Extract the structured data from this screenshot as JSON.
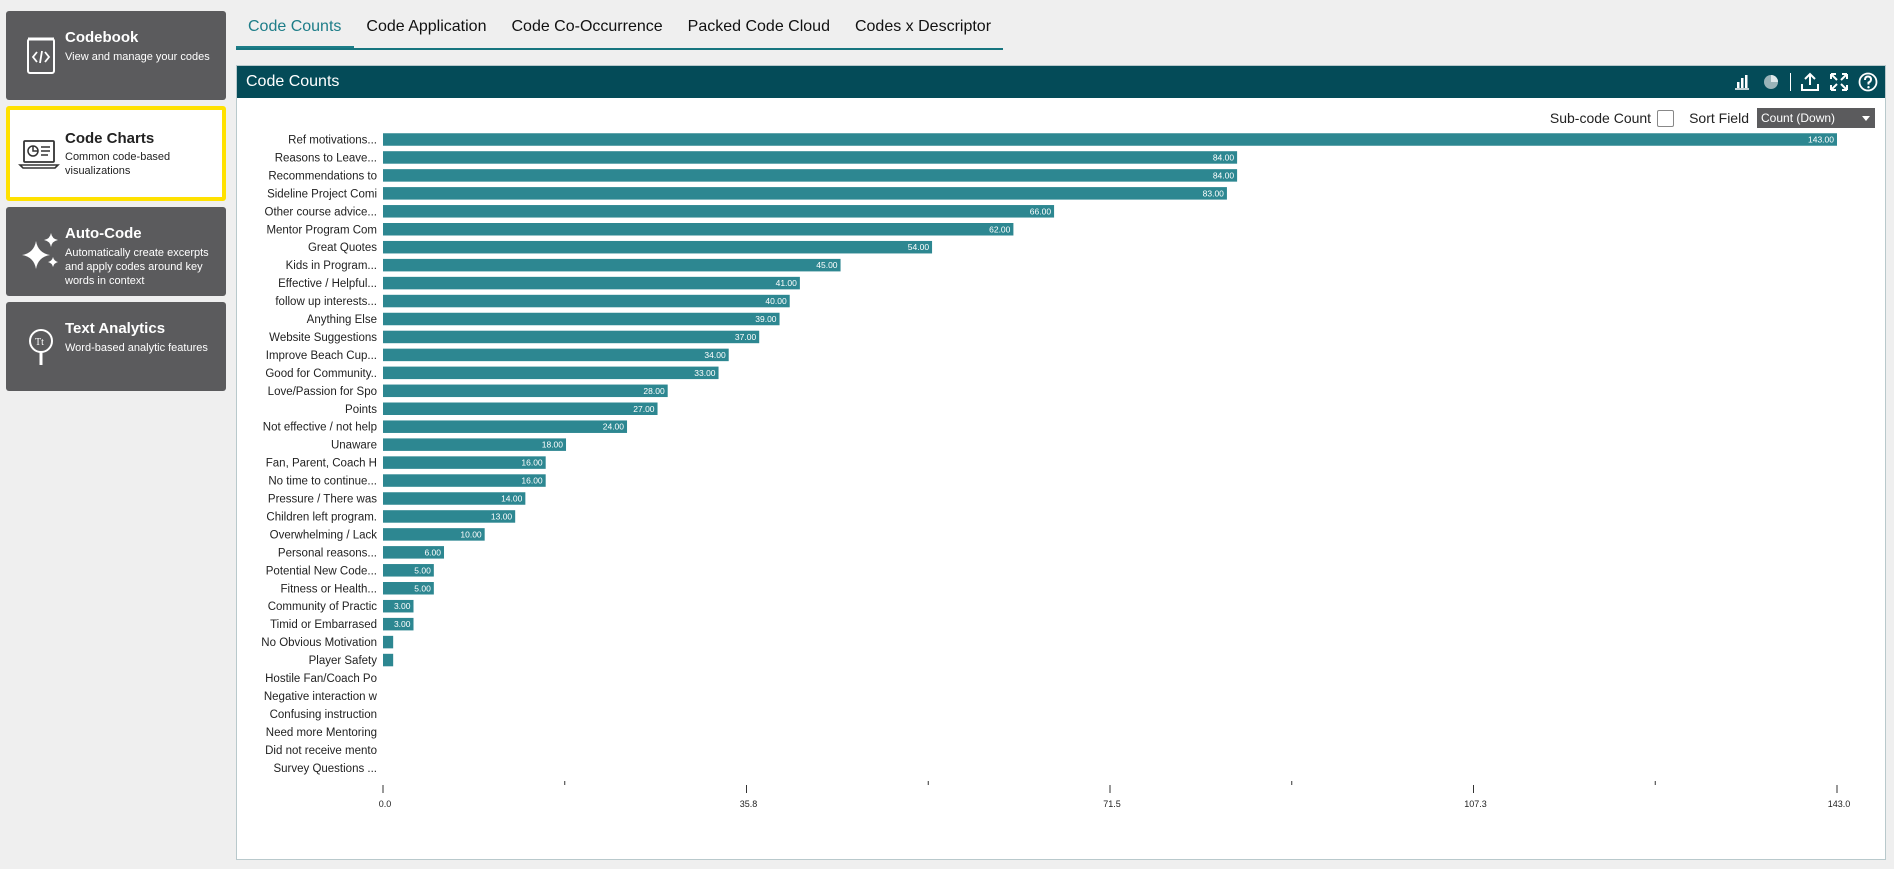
{
  "sidebar": {
    "items": [
      {
        "title": "Codebook",
        "desc": "View and manage your codes",
        "icon": "code-file-icon"
      },
      {
        "title": "Code Charts",
        "desc": "Common code-based visualizations",
        "icon": "chart-laptop-icon"
      },
      {
        "title": "Auto-Code",
        "desc": "Automatically create excerpts and apply codes around key words in context",
        "icon": "sparkle-icon"
      },
      {
        "title": "Text Analytics",
        "desc": "Word-based analytic features",
        "icon": "magnifier-text-icon"
      }
    ]
  },
  "tabs": [
    "Code Counts",
    "Code Application",
    "Code Co-Occurrence",
    "Packed Code Cloud",
    "Codes x Descriptor"
  ],
  "panel": {
    "title": "Code Counts",
    "subcode_label": "Sub-code Count",
    "sort_label": "Sort Field",
    "sort_value": "Count (Down)"
  },
  "colors": {
    "bar": "#2d8791",
    "header": "#044b58",
    "accent": "#1d7d88"
  },
  "chart_data": {
    "type": "bar",
    "orientation": "horizontal",
    "categories": [
      "Ref motivations...",
      "Reasons to Leave...",
      "Recommendations to",
      "Sideline Project Comi",
      "Other course advice...",
      "Mentor Program Com",
      "Great Quotes",
      "Kids in Program...",
      "Effective / Helpful...",
      "follow up interests...",
      "Anything Else",
      "Website Suggestions",
      "Improve Beach Cup...",
      "Good for Community..",
      "Love/Passion for Spo",
      "Points",
      "Not effective / not help",
      "Unaware",
      "Fan, Parent, Coach H",
      "No time to continue...",
      "Pressure / There was",
      "Children left program.",
      "Overwhelming / Lack",
      "Personal reasons...",
      "Potential New Code...",
      "Fitness or Health...",
      "Community of Practic",
      "Timid or Embarrased",
      "No Obvious Motivation",
      "Player Safety",
      "Hostile Fan/Coach Po",
      "Negative interaction w",
      "Confusing instruction",
      "Need more Mentoring",
      "Did not receive mento",
      "Survey Questions ..."
    ],
    "values": [
      143,
      84,
      84,
      83,
      66,
      62,
      54,
      45,
      41,
      40,
      39,
      37,
      34,
      33,
      28,
      27,
      24,
      18,
      16,
      16,
      14,
      13,
      10,
      6,
      5,
      5,
      3,
      3,
      1,
      1,
      0,
      0,
      0,
      0,
      0,
      0
    ],
    "value_labels": [
      "143.00",
      "84.00",
      "84.00",
      "83.00",
      "66.00",
      "62.00",
      "54.00",
      "45.00",
      "41.00",
      "40.00",
      "39.00",
      "37.00",
      "34.00",
      "33.00",
      "28.00",
      "27.00",
      "24.00",
      "18.00",
      "16.00",
      "16.00",
      "14.00",
      "13.00",
      "10.00",
      "6.00",
      "5.00",
      "5.00",
      "3.00",
      "3.00",
      "",
      "",
      "",
      "",
      "",
      "",
      "",
      ""
    ],
    "xlim": [
      0,
      143
    ],
    "xticks": [
      "0.0",
      "35.8",
      "71.5",
      "107.3",
      "143.0"
    ]
  }
}
